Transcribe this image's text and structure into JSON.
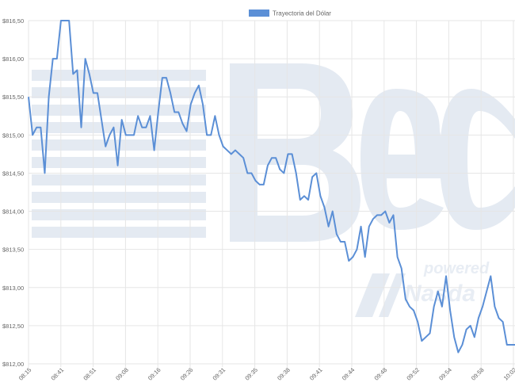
{
  "chart_data": {
    "type": "line",
    "legend": {
      "label": "Trayectoria del Dólar",
      "color": "#5b8fd6",
      "position": "top-center"
    },
    "yticks": [
      "$816,50",
      "$816,00",
      "$815,50",
      "$815,00",
      "$814,50",
      "$814,00",
      "$813,50",
      "$813,00",
      "$812,50",
      "$812,00"
    ],
    "ylim": [
      812.0,
      816.5
    ],
    "xticks": [
      "08:15",
      "08:41",
      "08:51",
      "09:08",
      "09:16",
      "09:26",
      "09:31",
      "09:35",
      "09:38",
      "09:41",
      "09:44",
      "09:48",
      "09:52",
      "09:54",
      "09:58",
      "10:02"
    ],
    "grid": true,
    "series": [
      {
        "color": "#5b8fd6",
        "values": [
          815.5,
          815.0,
          815.1,
          815.1,
          814.5,
          815.5,
          816.0,
          816.0,
          816.5,
          816.5,
          816.5,
          815.8,
          815.85,
          815.1,
          816.0,
          815.8,
          815.55,
          815.55,
          815.2,
          814.85,
          815.0,
          815.1,
          814.6,
          815.2,
          815.0,
          815.0,
          815.0,
          815.25,
          815.1,
          815.1,
          815.25,
          814.8,
          815.3,
          815.75,
          815.75,
          815.55,
          815.3,
          815.3,
          815.15,
          815.05,
          815.4,
          815.55,
          815.65,
          815.4,
          815.0,
          815.0,
          815.25,
          815.0,
          814.85,
          814.8,
          814.75,
          814.8,
          814.75,
          814.7,
          814.5,
          814.5,
          814.4,
          814.35,
          814.35,
          814.6,
          814.7,
          814.7,
          814.55,
          814.5,
          814.75,
          814.75,
          814.5,
          814.15,
          814.2,
          814.15,
          814.45,
          814.5,
          814.2,
          814.05,
          813.8,
          814.0,
          813.7,
          813.6,
          813.6,
          813.35,
          813.4,
          813.5,
          813.8,
          813.4,
          813.8,
          813.9,
          813.95,
          813.95,
          814.0,
          813.85,
          813.95,
          813.4,
          813.25,
          812.85,
          812.75,
          812.7,
          812.55,
          812.3,
          812.35,
          812.4,
          812.75,
          812.95,
          812.75,
          813.15,
          812.7,
          812.35,
          812.15,
          812.25,
          812.45,
          812.5,
          812.35,
          812.6,
          812.75,
          812.95,
          813.15,
          812.75,
          812.6,
          812.55,
          812.25,
          812.25,
          812.25
        ]
      }
    ]
  }
}
